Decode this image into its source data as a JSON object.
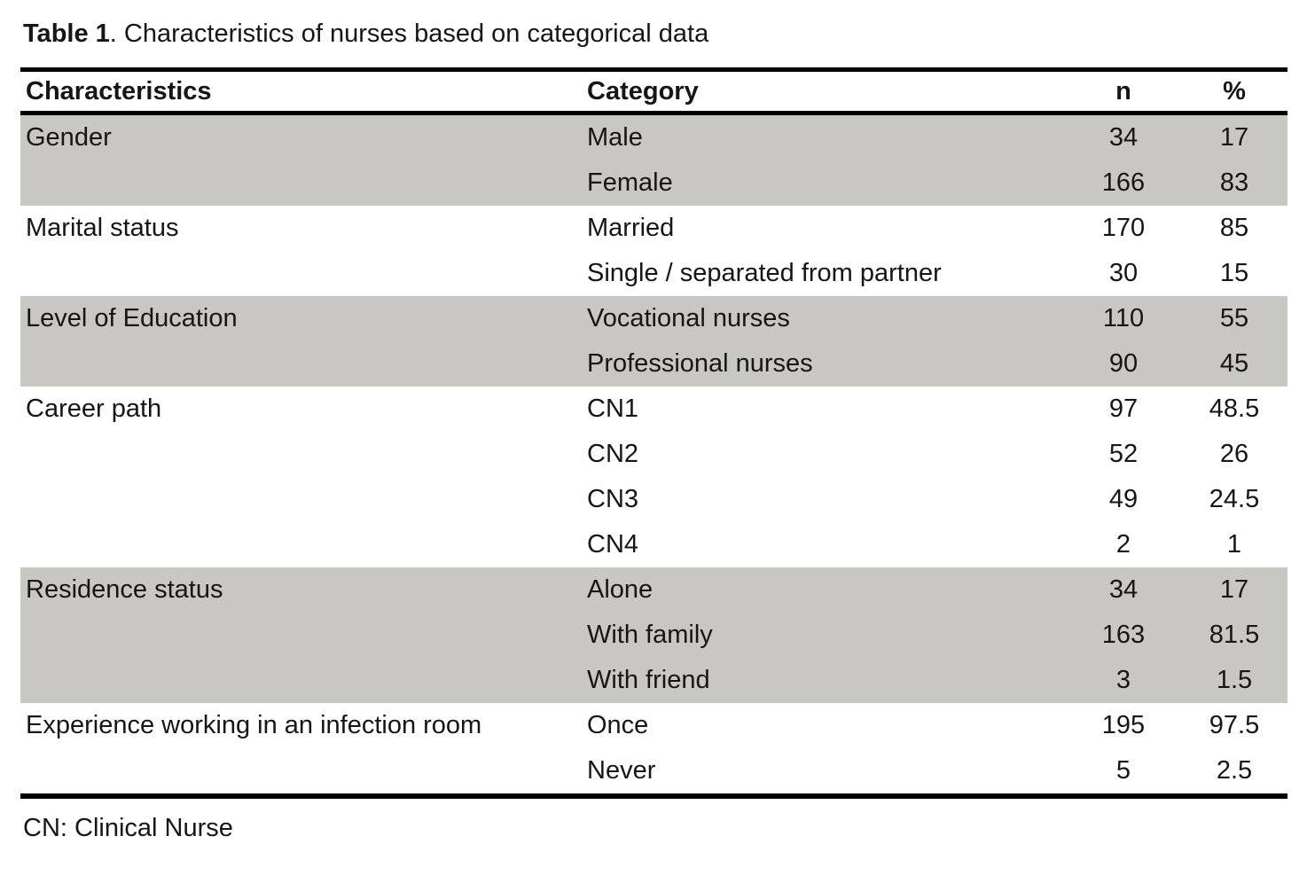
{
  "title": {
    "label": "Table 1",
    "rest": ". Characteristics of nurses based on categorical data"
  },
  "table": {
    "headers": {
      "characteristics": "Characteristics",
      "category": "Category",
      "n": "n",
      "pct": "%"
    },
    "rows": [
      {
        "characteristic": "Gender",
        "category": "Male",
        "n": 34,
        "pct": 17
      },
      {
        "characteristic": "",
        "category": "Female",
        "n": 166,
        "pct": 83
      },
      {
        "characteristic": "Marital status",
        "category": "Married",
        "n": 170,
        "pct": 85
      },
      {
        "characteristic": "",
        "category": "Single / separated from partner",
        "n": 30,
        "pct": 15
      },
      {
        "characteristic": "Level of Education",
        "category": "Vocational nurses",
        "n": 110,
        "pct": 55
      },
      {
        "characteristic": "",
        "category": "Professional nurses",
        "n": 90,
        "pct": 45
      },
      {
        "characteristic": "Career path",
        "category": "CN1",
        "n": 97,
        "pct": 48.5
      },
      {
        "characteristic": "",
        "category": "CN2",
        "n": 52,
        "pct": 26
      },
      {
        "characteristic": "",
        "category": "CN3",
        "n": 49,
        "pct": 24.5
      },
      {
        "characteristic": "",
        "category": "CN4",
        "n": 2,
        "pct": 1
      },
      {
        "characteristic": "Residence status",
        "category": "Alone",
        "n": 34,
        "pct": 17
      },
      {
        "characteristic": "",
        "category": "With family",
        "n": 163,
        "pct": 81.5
      },
      {
        "characteristic": "",
        "category": "With friend",
        "n": 3,
        "pct": 1.5
      },
      {
        "characteristic": "Experience working in an infection room",
        "category": "Once",
        "n": 195,
        "pct": 97.5
      },
      {
        "characteristic": "",
        "category": "Never",
        "n": 5,
        "pct": 2.5
      }
    ]
  },
  "footnote": "CN: Clinical Nurse",
  "colors": {
    "row_shading": "#c8c7c1",
    "rule": "#000000",
    "text": "#161616"
  }
}
